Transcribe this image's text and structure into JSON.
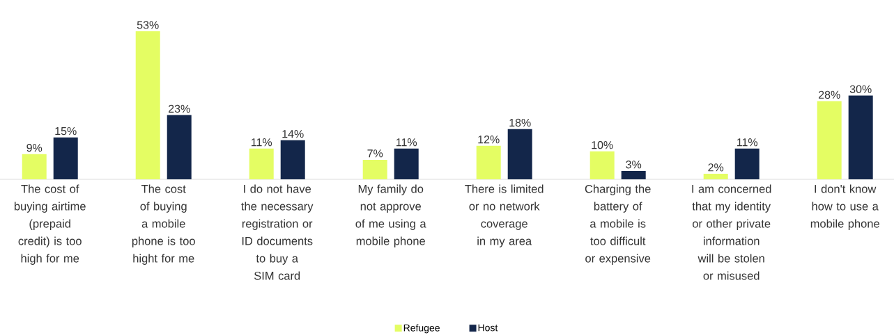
{
  "chart_data": {
    "type": "bar",
    "categories": [
      "The cost of buying airtime (prepaid credit) is too high for me",
      "The cost of buying a mobile phone is too hight for me",
      "I do not have the necessary registration or ID documents to buy a SIM card",
      "My family do not approve of me using a mobile phone",
      "There is limited or no network coverage in my area",
      "Charging the battery of a mobile is too difficult or expensive",
      "I am concerned that my identity or other private information will be stolen or misused",
      "I don't know how to use a mobile phone"
    ],
    "series": [
      {
        "name": "Refugee",
        "color": "#e4fd63",
        "values": [
          9,
          53,
          11,
          7,
          12,
          10,
          2,
          28
        ],
        "value_labels": [
          "9%",
          "53%",
          "11%",
          "7%",
          "12%",
          "10%",
          "2%",
          "28%"
        ]
      },
      {
        "name": "Host",
        "color": "#13264a",
        "values": [
          15,
          23,
          14,
          11,
          18,
          3,
          11,
          30
        ],
        "value_labels": [
          "15%",
          "23%",
          "14%",
          "11%",
          "18%",
          "3%",
          "11%",
          "30%"
        ]
      }
    ],
    "legend": "bottom"
  }
}
